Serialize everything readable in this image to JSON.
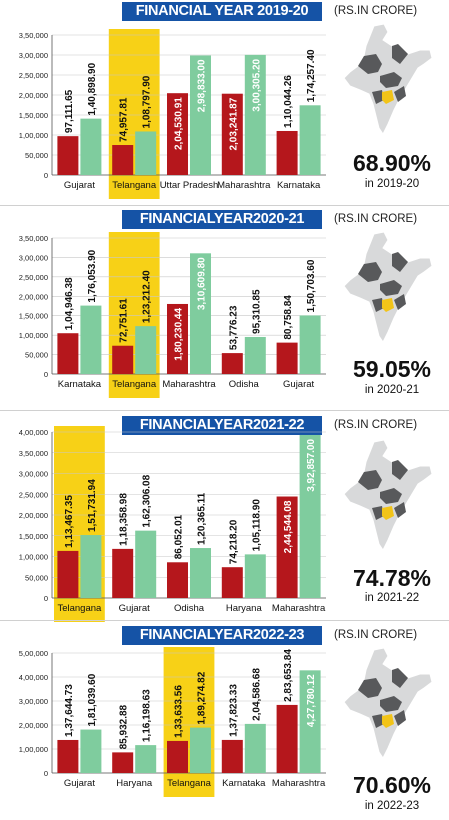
{
  "unit_label": "(RS.IN CRORE)",
  "colors": {
    "highlight": "#f7d117",
    "title_bg": "#1553a6",
    "bar_a": "#b5171c",
    "bar_b": "#7fcc9e",
    "map_dark": "#58595b",
    "map_light": "#d8d9da",
    "map_telangana": "#f2c418"
  },
  "chart_data": [
    {
      "type": "bar",
      "title": "FINANCIAL YEAR 2019-20",
      "categories": [
        "Gujarat",
        "Telangana",
        "Uttar Pradesh",
        "Maharashtra",
        "Karnataka"
      ],
      "highlight": "Telangana",
      "ylim": [
        0,
        350000
      ],
      "yticks": [
        "0",
        "50,000",
        "1,00,000",
        "1,50,000",
        "2,00,000",
        "2,50,000",
        "3,00,000",
        "3,50,000"
      ],
      "series": [
        {
          "values": [
            97111.65,
            74957.81,
            204530.91,
            203241.87,
            110044.26
          ],
          "labels": [
            "97,111.65",
            "74,957.81",
            "2,04,530.91",
            "2,03,241.87",
            "1,10,044.26"
          ]
        },
        {
          "values": [
            140898.9,
            108797.9,
            298833.0,
            300305.2,
            174257.4
          ],
          "labels": [
            "1,40,898.90",
            "1,08,797.90",
            "2,98,833.00",
            "3,00,305.20",
            "1,74,257.40"
          ]
        }
      ],
      "share": "68.90%",
      "share_year": "in 2019-20"
    },
    {
      "type": "bar",
      "title": "FINANCIALYEAR2020-21",
      "categories": [
        "Karnataka",
        "Telangana",
        "Maharashtra",
        "Odisha",
        "Gujarat"
      ],
      "highlight": "Telangana",
      "ylim": [
        0,
        350000
      ],
      "yticks": [
        "0",
        "50,000",
        "1,00,000",
        "1,50,000",
        "2,00,000",
        "2,50,000",
        "3,00,000",
        "3,50,000"
      ],
      "series": [
        {
          "values": [
            104946.38,
            72751.61,
            180230.44,
            53776.23,
            80758.84
          ],
          "labels": [
            "1,04,946.38",
            "72,751.61",
            "1,80,230.44",
            "53,776.23",
            "80,758.84"
          ]
        },
        {
          "values": [
            176053.9,
            123212.4,
            310609.8,
            95310.85,
            150703.6
          ],
          "labels": [
            "1,76,053.90",
            "1,23,212.40",
            "3,10,609.80",
            "95,310.85",
            "1,50,703.60"
          ]
        }
      ],
      "share": "59.05%",
      "share_year": "in 2020-21"
    },
    {
      "type": "bar",
      "title": "FINANCIALYEAR2021-22",
      "categories": [
        "Telangana",
        "Gujarat",
        "Odisha",
        "Haryana",
        "Maharashtra"
      ],
      "highlight": "Telangana",
      "ylim": [
        0,
        400000
      ],
      "yticks": [
        "0",
        "50,000",
        "1,00,000",
        "1,50,000",
        "2,00,000",
        "2,50,000",
        "3,00,000",
        "3,50,000",
        "4,00,000"
      ],
      "series": [
        {
          "values": [
            113467.35,
            118358.98,
            86052.01,
            74218.2,
            244544.08
          ],
          "labels": [
            "1,13,467.35",
            "1,18,358.98",
            "86,052.01",
            "74,218.20",
            "2,44,544.08"
          ]
        },
        {
          "values": [
            151731.94,
            162306.08,
            120365.11,
            105118.9,
            392857.0
          ],
          "labels": [
            "1,51,731.94",
            "1,62,306.08",
            "1,20,365.11",
            "1,05,118.90",
            "3,92,857.00"
          ]
        }
      ],
      "share": "74.78%",
      "share_year": "in 2021-22"
    },
    {
      "type": "bar",
      "title": "FINANCIALYEAR2022-23",
      "categories": [
        "Gujarat",
        "Haryana",
        "Telangana",
        "Karnataka",
        "Maharashtra"
      ],
      "highlight": "Telangana",
      "ylim": [
        0,
        500000
      ],
      "yticks": [
        "0",
        "1,00,000",
        "2,00,000",
        "3,00,000",
        "4,00,000",
        "5,00,000"
      ],
      "series": [
        {
          "values": [
            137644.73,
            85932.88,
            133633.56,
            137823.33,
            283653.84
          ],
          "labels": [
            "1,37,644.73",
            "85,932.88",
            "1,33,633.56",
            "1,37,823.33",
            "2,83,653.84"
          ]
        },
        {
          "values": [
            181039.6,
            116198.63,
            189274.82,
            204586.68,
            427780.12
          ],
          "labels": [
            "1,81,039.60",
            "1,16,198.63",
            "1,89,274.82",
            "2,04,586.68",
            "4,27,780.12"
          ]
        }
      ],
      "share": "70.60%",
      "share_year": "in 2022-23"
    }
  ]
}
